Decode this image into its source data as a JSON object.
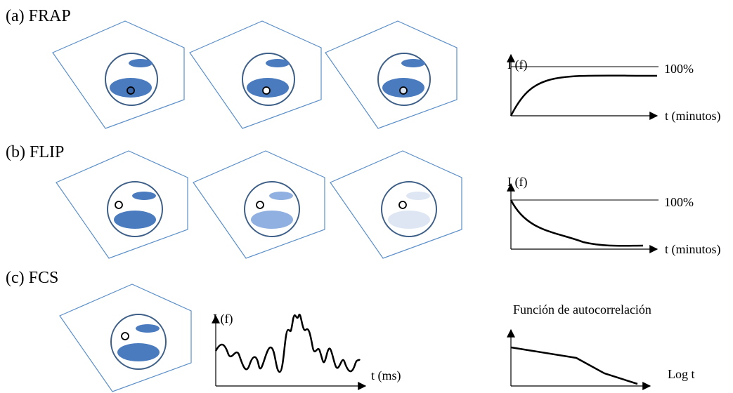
{
  "panels": [
    {
      "label": "(a) FRAP",
      "y_label": "I (f)",
      "reference_label": "100%",
      "x_label": "t (minutos)"
    },
    {
      "label": "(b) FLIP",
      "y_label": "I (f)",
      "reference_label": "100%",
      "x_label": "t (minutos)"
    },
    {
      "label": "(c)  FCS",
      "y_label": "I (f)",
      "x_label": "t (ms)",
      "right_title": "Función de autocorrelación",
      "right_x_label": "Log t"
    }
  ]
}
